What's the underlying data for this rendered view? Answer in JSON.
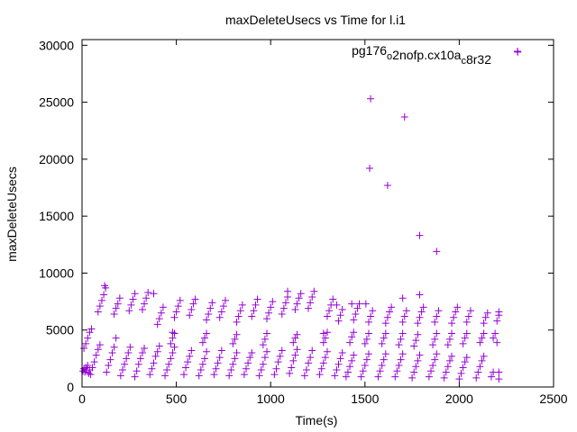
{
  "chart_data": {
    "type": "scatter",
    "title": "maxDeleteUsecs vs Time for l.i1",
    "xlabel": "Time(s)",
    "ylabel": "maxDeleteUsecs",
    "xlim": [
      0,
      2500
    ],
    "ylim": [
      0,
      30500
    ],
    "x_ticks": [
      0,
      500,
      1000,
      1500,
      2000,
      2500
    ],
    "y_ticks": [
      0,
      5000,
      10000,
      15000,
      20000,
      25000,
      30000
    ],
    "grid": false,
    "legend_position": "top-right",
    "marker": "plus",
    "color": "#9400d3",
    "series": [
      {
        "name": "pg176_o2nofp.cx10a_c8r32",
        "points": [
          [
            5,
            1400
          ],
          [
            10,
            1600
          ],
          [
            15,
            1300
          ],
          [
            20,
            1700
          ],
          [
            25,
            1500
          ],
          [
            30,
            1900
          ],
          [
            35,
            1200
          ],
          [
            40,
            1500
          ],
          [
            10,
            3400
          ],
          [
            20,
            3800
          ],
          [
            30,
            4300
          ],
          [
            40,
            4800
          ],
          [
            50,
            5100
          ],
          [
            45,
            1100
          ],
          [
            55,
            1700
          ],
          [
            65,
            2200
          ],
          [
            75,
            2800
          ],
          [
            85,
            3300
          ],
          [
            95,
            3700
          ],
          [
            85,
            6600
          ],
          [
            95,
            7100
          ],
          [
            105,
            7600
          ],
          [
            115,
            8100
          ],
          [
            125,
            8700
          ],
          [
            130,
            1300
          ],
          [
            140,
            1900
          ],
          [
            150,
            2400
          ],
          [
            160,
            3000
          ],
          [
            170,
            3500
          ],
          [
            180,
            4300
          ],
          [
            170,
            6400
          ],
          [
            180,
            6900
          ],
          [
            190,
            7300
          ],
          [
            200,
            7800
          ],
          [
            205,
            1000
          ],
          [
            215,
            1500
          ],
          [
            225,
            2000
          ],
          [
            235,
            2500
          ],
          [
            245,
            3000
          ],
          [
            255,
            3500
          ],
          [
            250,
            6700
          ],
          [
            260,
            7200
          ],
          [
            270,
            7700
          ],
          [
            280,
            8200
          ],
          [
            280,
            900
          ],
          [
            290,
            1400
          ],
          [
            300,
            2000
          ],
          [
            310,
            2500
          ],
          [
            320,
            3000
          ],
          [
            330,
            3400
          ],
          [
            320,
            6800
          ],
          [
            330,
            7300
          ],
          [
            340,
            7800
          ],
          [
            350,
            8300
          ],
          [
            360,
            1100
          ],
          [
            370,
            1600
          ],
          [
            380,
            2100
          ],
          [
            390,
            2700
          ],
          [
            400,
            3100
          ],
          [
            410,
            3600
          ],
          [
            400,
            5500
          ],
          [
            410,
            6000
          ],
          [
            420,
            6500
          ],
          [
            430,
            7000
          ],
          [
            440,
            1000
          ],
          [
            450,
            1500
          ],
          [
            460,
            2000
          ],
          [
            470,
            2500
          ],
          [
            480,
            3000
          ],
          [
            490,
            3500
          ],
          [
            470,
            3800
          ],
          [
            480,
            4300
          ],
          [
            490,
            4700
          ],
          [
            490,
            6100
          ],
          [
            500,
            6600
          ],
          [
            510,
            7100
          ],
          [
            520,
            7600
          ],
          [
            540,
            1100
          ],
          [
            550,
            1700
          ],
          [
            560,
            2200
          ],
          [
            570,
            2700
          ],
          [
            580,
            3200
          ],
          [
            570,
            6300
          ],
          [
            580,
            6800
          ],
          [
            590,
            7300
          ],
          [
            600,
            7700
          ],
          [
            620,
            1000
          ],
          [
            630,
            1500
          ],
          [
            640,
            2000
          ],
          [
            650,
            2500
          ],
          [
            660,
            3100
          ],
          [
            640,
            3900
          ],
          [
            650,
            4300
          ],
          [
            660,
            4700
          ],
          [
            660,
            5900
          ],
          [
            670,
            6400
          ],
          [
            680,
            6900
          ],
          [
            690,
            7400
          ],
          [
            700,
            1100
          ],
          [
            710,
            1600
          ],
          [
            720,
            2100
          ],
          [
            730,
            2600
          ],
          [
            740,
            3200
          ],
          [
            730,
            6100
          ],
          [
            740,
            6600
          ],
          [
            750,
            7100
          ],
          [
            760,
            7600
          ],
          [
            780,
            1000
          ],
          [
            790,
            1500
          ],
          [
            800,
            2000
          ],
          [
            810,
            2500
          ],
          [
            820,
            3000
          ],
          [
            800,
            3800
          ],
          [
            810,
            4200
          ],
          [
            820,
            4600
          ],
          [
            820,
            5700
          ],
          [
            830,
            6200
          ],
          [
            840,
            6700
          ],
          [
            850,
            7200
          ],
          [
            860,
            1100
          ],
          [
            870,
            1600
          ],
          [
            880,
            2100
          ],
          [
            890,
            2600
          ],
          [
            900,
            3000
          ],
          [
            900,
            6200
          ],
          [
            910,
            6700
          ],
          [
            920,
            7200
          ],
          [
            930,
            7700
          ],
          [
            940,
            1000
          ],
          [
            950,
            1500
          ],
          [
            960,
            2000
          ],
          [
            970,
            2600
          ],
          [
            980,
            3100
          ],
          [
            960,
            3700
          ],
          [
            970,
            4200
          ],
          [
            980,
            4700
          ],
          [
            980,
            6000
          ],
          [
            990,
            6500
          ],
          [
            1000,
            7000
          ],
          [
            1010,
            7500
          ],
          [
            1020,
            1100
          ],
          [
            1030,
            1600
          ],
          [
            1040,
            2200
          ],
          [
            1050,
            2700
          ],
          [
            1060,
            3200
          ],
          [
            1060,
            6400
          ],
          [
            1070,
            6900
          ],
          [
            1080,
            7400
          ],
          [
            1090,
            7900
          ],
          [
            1100,
            1200
          ],
          [
            1110,
            1700
          ],
          [
            1120,
            2300
          ],
          [
            1130,
            2800
          ],
          [
            1140,
            3300
          ],
          [
            1120,
            3900
          ],
          [
            1130,
            4300
          ],
          [
            1140,
            4600
          ],
          [
            1130,
            6800
          ],
          [
            1140,
            7300
          ],
          [
            1150,
            7800
          ],
          [
            1160,
            8200
          ],
          [
            1180,
            1000
          ],
          [
            1190,
            1500
          ],
          [
            1200,
            2100
          ],
          [
            1210,
            2600
          ],
          [
            1220,
            3200
          ],
          [
            1200,
            6900
          ],
          [
            1210,
            7400
          ],
          [
            1220,
            7900
          ],
          [
            1230,
            8400
          ],
          [
            1260,
            1100
          ],
          [
            1270,
            1600
          ],
          [
            1280,
            2100
          ],
          [
            1290,
            2600
          ],
          [
            1300,
            3100
          ],
          [
            1280,
            3900
          ],
          [
            1290,
            4300
          ],
          [
            1300,
            4800
          ],
          [
            1300,
            6200
          ],
          [
            1310,
            6700
          ],
          [
            1320,
            7200
          ],
          [
            1330,
            7700
          ],
          [
            1340,
            1000
          ],
          [
            1350,
            1500
          ],
          [
            1360,
            2000
          ],
          [
            1370,
            2500
          ],
          [
            1380,
            3000
          ],
          [
            1360,
            5800
          ],
          [
            1370,
            6300
          ],
          [
            1380,
            6800
          ],
          [
            1400,
            900
          ],
          [
            1410,
            1300
          ],
          [
            1420,
            1800
          ],
          [
            1430,
            2300
          ],
          [
            1440,
            2800
          ],
          [
            1420,
            3900
          ],
          [
            1430,
            4400
          ],
          [
            1440,
            4800
          ],
          [
            1440,
            5900
          ],
          [
            1450,
            6400
          ],
          [
            1460,
            6900
          ],
          [
            1470,
            7300
          ],
          [
            1480,
            900
          ],
          [
            1490,
            1400
          ],
          [
            1500,
            1900
          ],
          [
            1510,
            2400
          ],
          [
            1520,
            2900
          ],
          [
            1500,
            3800
          ],
          [
            1510,
            4200
          ],
          [
            1520,
            4700
          ],
          [
            1520,
            5700
          ],
          [
            1530,
            6200
          ],
          [
            1540,
            6700
          ],
          [
            1570,
            900
          ],
          [
            1580,
            1400
          ],
          [
            1590,
            1900
          ],
          [
            1600,
            2400
          ],
          [
            1610,
            2900
          ],
          [
            1590,
            3800
          ],
          [
            1600,
            4300
          ],
          [
            1610,
            4700
          ],
          [
            1610,
            5600
          ],
          [
            1620,
            6100
          ],
          [
            1630,
            6600
          ],
          [
            1640,
            7000
          ],
          [
            1660,
            900
          ],
          [
            1670,
            1400
          ],
          [
            1680,
            1900
          ],
          [
            1690,
            2400
          ],
          [
            1700,
            2900
          ],
          [
            1680,
            3700
          ],
          [
            1690,
            4200
          ],
          [
            1700,
            4700
          ],
          [
            1700,
            5700
          ],
          [
            1710,
            6200
          ],
          [
            1720,
            6700
          ],
          [
            1750,
            800
          ],
          [
            1760,
            1300
          ],
          [
            1770,
            1800
          ],
          [
            1780,
            2300
          ],
          [
            1790,
            2800
          ],
          [
            1760,
            3600
          ],
          [
            1770,
            4100
          ],
          [
            1780,
            4600
          ],
          [
            1780,
            5600
          ],
          [
            1790,
            6100
          ],
          [
            1800,
            6600
          ],
          [
            1810,
            7000
          ],
          [
            1840,
            900
          ],
          [
            1850,
            1400
          ],
          [
            1860,
            1900
          ],
          [
            1870,
            2400
          ],
          [
            1880,
            2900
          ],
          [
            1860,
            3700
          ],
          [
            1870,
            4200
          ],
          [
            1880,
            4700
          ],
          [
            1870,
            5700
          ],
          [
            1880,
            6200
          ],
          [
            1890,
            6700
          ],
          [
            1920,
            800
          ],
          [
            1930,
            1300
          ],
          [
            1940,
            1800
          ],
          [
            1950,
            2300
          ],
          [
            1960,
            2700
          ],
          [
            1940,
            3700
          ],
          [
            1950,
            4200
          ],
          [
            1960,
            4700
          ],
          [
            1960,
            5600
          ],
          [
            1970,
            6100
          ],
          [
            1980,
            6600
          ],
          [
            1990,
            7000
          ],
          [
            2000,
            700
          ],
          [
            2010,
            1200
          ],
          [
            2020,
            1700
          ],
          [
            2030,
            2200
          ],
          [
            2040,
            2600
          ],
          [
            2020,
            3800
          ],
          [
            2030,
            4300
          ],
          [
            2040,
            4700
          ],
          [
            2040,
            5700
          ],
          [
            2050,
            6200
          ],
          [
            2060,
            6700
          ],
          [
            2090,
            800
          ],
          [
            2100,
            1300
          ],
          [
            2110,
            1800
          ],
          [
            2120,
            2300
          ],
          [
            2130,
            2700
          ],
          [
            2110,
            3900
          ],
          [
            2120,
            4300
          ],
          [
            2130,
            4700
          ],
          [
            2130,
            5600
          ],
          [
            2140,
            6100
          ],
          [
            2150,
            6500
          ],
          [
            2170,
            900
          ],
          [
            2180,
            1300
          ],
          [
            2180,
            4300
          ],
          [
            2190,
            4700
          ],
          [
            2200,
            5800
          ],
          [
            2210,
            6300
          ],
          [
            2210,
            700
          ],
          [
            2210,
            1300
          ],
          [
            2200,
            3900
          ],
          [
            2210,
            6600
          ],
          [
            1350,
            7200
          ],
          [
            1430,
            7300
          ],
          [
            1505,
            7300
          ],
          [
            1700,
            7800
          ],
          [
            1790,
            8100
          ],
          [
            120,
            8900
          ],
          [
            380,
            8200
          ],
          [
            1090,
            8400
          ],
          [
            1280,
            4700
          ],
          [
            480,
            4800
          ],
          [
            1525,
            19200
          ],
          [
            1530,
            25300
          ],
          [
            1620,
            17700
          ],
          [
            1710,
            23700
          ],
          [
            1790,
            13300
          ],
          [
            1880,
            11900
          ],
          [
            2310,
            29400
          ]
        ]
      }
    ]
  }
}
